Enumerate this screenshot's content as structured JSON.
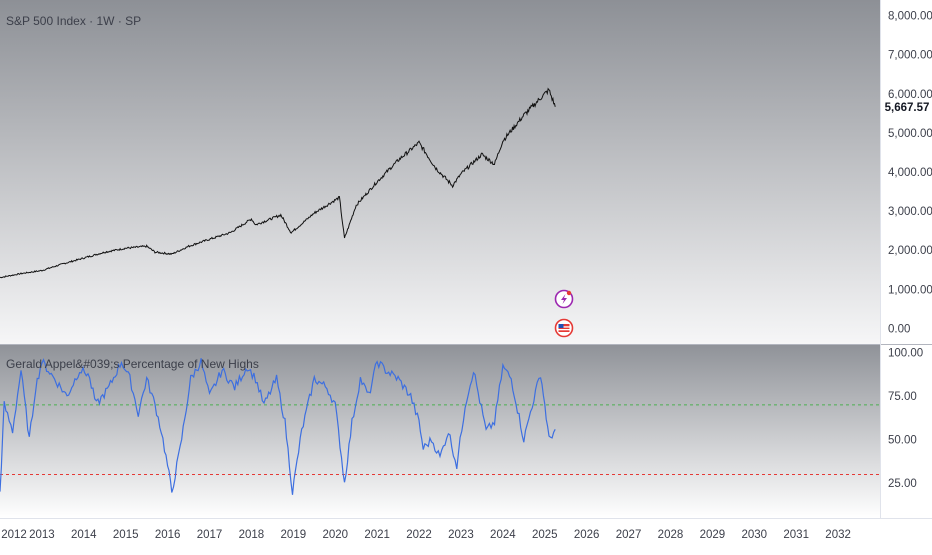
{
  "header": {
    "title": "S&P 500 Index · 1W · SP"
  },
  "indicator": {
    "title": "Gerald Appel&#039;s Percentage of New Highs"
  },
  "colors": {
    "price_line": "#111111",
    "indicator_line": "#3d6fe0",
    "ref_upper": "#4caf50",
    "ref_lower": "#e53935",
    "last_price_badge": "#ffffff",
    "event_purple": "#9c27b0",
    "event_red": "#e53935",
    "axis_text": "#3c3f4a"
  },
  "icons": {
    "lightning": "lightning-bolt-icon",
    "flag": "us-flag-icon"
  },
  "chart_data": [
    {
      "type": "line",
      "name": "price",
      "title": "S&P 500 Index · 1W · SP",
      "ylim": [
        -400,
        8400
      ],
      "xlim": [
        2012.0,
        2033.0
      ],
      "y_ticks": [
        "0.00",
        "1,000.00",
        "2,000.00",
        "3,000.00",
        "4,000.00",
        "5,000.00",
        "6,000.00",
        "7,000.00",
        "8,000.00"
      ],
      "y_tick_values": [
        0,
        1000,
        2000,
        3000,
        4000,
        5000,
        6000,
        7000,
        8000
      ],
      "last_value_label": "5,667.57",
      "last_value": 5667.57,
      "x": [
        2012.0,
        2012.5,
        2013.0,
        2013.5,
        2014.0,
        2014.5,
        2015.0,
        2015.5,
        2015.7,
        2016.1,
        2016.5,
        2017.0,
        2017.5,
        2018.0,
        2018.1,
        2018.7,
        2018.95,
        2019.5,
        2020.1,
        2020.22,
        2020.5,
        2021.0,
        2021.5,
        2022.0,
        2022.4,
        2022.8,
        2023.0,
        2023.5,
        2023.8,
        2024.0,
        2024.5,
        2025.0,
        2025.1,
        2025.25
      ],
      "values": [
        1300,
        1400,
        1480,
        1650,
        1800,
        1950,
        2050,
        2100,
        1950,
        1900,
        2100,
        2280,
        2450,
        2800,
        2650,
        2900,
        2450,
        2950,
        3350,
        2300,
        3150,
        3750,
        4300,
        4750,
        4100,
        3650,
        3950,
        4450,
        4200,
        4800,
        5450,
        6000,
        6100,
        5667.57
      ]
    },
    {
      "type": "line",
      "name": "indicator",
      "title": "Gerald Appel&#039;s Percentage of New Highs",
      "ylim": [
        5,
        105
      ],
      "xlim": [
        2012.0,
        2033.0
      ],
      "y_ticks": [
        "25.00",
        "50.00",
        "75.00",
        "100.00"
      ],
      "y_tick_values": [
        25,
        50,
        75,
        100
      ],
      "ref_lines": [
        70,
        30
      ],
      "x": [
        2012.0,
        2012.1,
        2012.3,
        2012.5,
        2012.7,
        2012.85,
        2013.0,
        2013.3,
        2013.6,
        2013.9,
        2014.1,
        2014.3,
        2014.6,
        2014.9,
        2015.1,
        2015.3,
        2015.5,
        2015.7,
        2015.85,
        2016.0,
        2016.1,
        2016.3,
        2016.55,
        2016.8,
        2017.0,
        2017.3,
        2017.6,
        2017.9,
        2018.1,
        2018.3,
        2018.6,
        2018.8,
        2018.98,
        2019.2,
        2019.5,
        2019.8,
        2020.0,
        2020.15,
        2020.22,
        2020.4,
        2020.6,
        2020.8,
        2021.0,
        2021.2,
        2021.5,
        2021.8,
        2022.0,
        2022.1,
        2022.3,
        2022.5,
        2022.7,
        2022.9,
        2023.1,
        2023.3,
        2023.6,
        2023.8,
        2024.0,
        2024.2,
        2024.5,
        2024.7,
        2024.9,
        2025.0,
        2025.1,
        2025.25
      ],
      "values": [
        20,
        70,
        55,
        90,
        50,
        80,
        95,
        85,
        75,
        90,
        88,
        70,
        80,
        95,
        85,
        65,
        85,
        70,
        55,
        35,
        20,
        45,
        85,
        95,
        75,
        90,
        80,
        92,
        85,
        70,
        85,
        60,
        20,
        55,
        85,
        80,
        70,
        40,
        25,
        60,
        85,
        75,
        95,
        90,
        85,
        75,
        60,
        45,
        50,
        40,
        55,
        35,
        70,
        90,
        55,
        60,
        92,
        85,
        50,
        70,
        88,
        70,
        50,
        56
      ]
    }
  ],
  "x_axis": {
    "ticks": [
      "2012",
      "2013",
      "2014",
      "2015",
      "2016",
      "2017",
      "2018",
      "2019",
      "2020",
      "2021",
      "2022",
      "2023",
      "2024",
      "2025",
      "2026",
      "2027",
      "2028",
      "2029",
      "2030",
      "2031",
      "2032"
    ],
    "tick_values": [
      2012,
      2013,
      2014,
      2015,
      2016,
      2017,
      2018,
      2019,
      2020,
      2021,
      2022,
      2023,
      2024,
      2025,
      2026,
      2027,
      2028,
      2029,
      2030,
      2031,
      2032
    ]
  }
}
